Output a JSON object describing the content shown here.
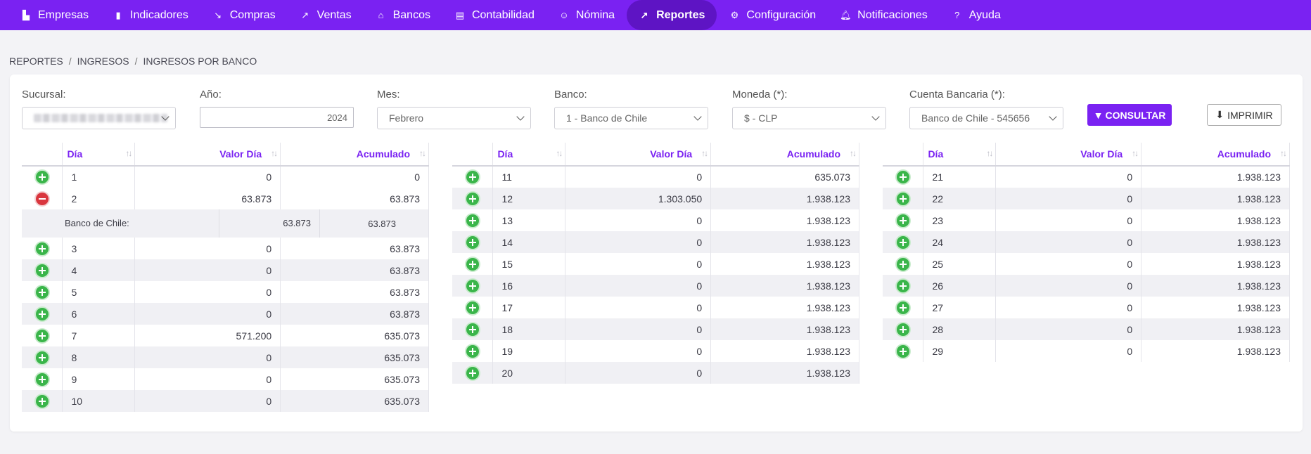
{
  "nav": [
    {
      "label": "Empresas",
      "icon": "building-icon"
    },
    {
      "label": "Indicadores",
      "icon": "bar-chart-icon"
    },
    {
      "label": "Compras",
      "icon": "arrow-down-right-icon"
    },
    {
      "label": "Ventas",
      "icon": "arrow-up-right-icon"
    },
    {
      "label": "Bancos",
      "icon": "bank-icon"
    },
    {
      "label": "Contabilidad",
      "icon": "calculator-icon"
    },
    {
      "label": "Nómina",
      "icon": "users-icon"
    },
    {
      "label": "Reportes",
      "icon": "line-chart-icon"
    },
    {
      "label": "Configuración",
      "icon": "gear-icon"
    },
    {
      "label": "Notificaciones",
      "icon": "bell-icon"
    },
    {
      "label": "Ayuda",
      "icon": "help-circle-icon"
    }
  ],
  "breadcrumb": [
    "REPORTES",
    "INGRESOS",
    "INGRESOS POR BANCO"
  ],
  "filters": {
    "sucursal_label": "Sucursal:",
    "anio_label": "Año:",
    "anio_value": "2024",
    "mes_label": "Mes:",
    "mes_value": "Febrero",
    "banco_label": "Banco:",
    "banco_value": "1 - Banco de Chile",
    "moneda_label": "Moneda (*):",
    "moneda_value": "$ - CLP",
    "cuenta_label": "Cuenta Bancaria (*):",
    "cuenta_value": "Banco de Chile - 545656"
  },
  "buttons": {
    "consultar": "CONSULTAR",
    "imprimir": "IMPRIMIR"
  },
  "columns": {
    "dia": "Día",
    "valor": "Valor Día",
    "acumulado": "Acumulado"
  },
  "table1": [
    {
      "dia": "1",
      "valor": "0",
      "acum": "0",
      "icon": "plus"
    },
    {
      "dia": "2",
      "valor": "63.873",
      "acum": "63.873",
      "icon": "minus"
    },
    {
      "dia": "3",
      "valor": "0",
      "acum": "63.873",
      "icon": "plus"
    },
    {
      "dia": "4",
      "valor": "0",
      "acum": "63.873",
      "icon": "plus"
    },
    {
      "dia": "5",
      "valor": "0",
      "acum": "63.873",
      "icon": "plus"
    },
    {
      "dia": "6",
      "valor": "0",
      "acum": "63.873",
      "icon": "plus"
    },
    {
      "dia": "7",
      "valor": "571.200",
      "acum": "635.073",
      "icon": "plus"
    },
    {
      "dia": "8",
      "valor": "0",
      "acum": "635.073",
      "icon": "plus"
    },
    {
      "dia": "9",
      "valor": "0",
      "acum": "635.073",
      "icon": "plus"
    },
    {
      "dia": "10",
      "valor": "0",
      "acum": "635.073",
      "icon": "plus"
    }
  ],
  "detail": {
    "label": "Banco de Chile:",
    "valor": "63.873",
    "acum": "63.873"
  },
  "table2": [
    {
      "dia": "11",
      "valor": "0",
      "acum": "635.073"
    },
    {
      "dia": "12",
      "valor": "1.303.050",
      "acum": "1.938.123"
    },
    {
      "dia": "13",
      "valor": "0",
      "acum": "1.938.123"
    },
    {
      "dia": "14",
      "valor": "0",
      "acum": "1.938.123"
    },
    {
      "dia": "15",
      "valor": "0",
      "acum": "1.938.123"
    },
    {
      "dia": "16",
      "valor": "0",
      "acum": "1.938.123"
    },
    {
      "dia": "17",
      "valor": "0",
      "acum": "1.938.123"
    },
    {
      "dia": "18",
      "valor": "0",
      "acum": "1.938.123"
    },
    {
      "dia": "19",
      "valor": "0",
      "acum": "1.938.123"
    },
    {
      "dia": "20",
      "valor": "0",
      "acum": "1.938.123"
    }
  ],
  "table3": [
    {
      "dia": "21",
      "valor": "0",
      "acum": "1.938.123"
    },
    {
      "dia": "22",
      "valor": "0",
      "acum": "1.938.123"
    },
    {
      "dia": "23",
      "valor": "0",
      "acum": "1.938.123"
    },
    {
      "dia": "24",
      "valor": "0",
      "acum": "1.938.123"
    },
    {
      "dia": "25",
      "valor": "0",
      "acum": "1.938.123"
    },
    {
      "dia": "26",
      "valor": "0",
      "acum": "1.938.123"
    },
    {
      "dia": "27",
      "valor": "0",
      "acum": "1.938.123"
    },
    {
      "dia": "28",
      "valor": "0",
      "acum": "1.938.123"
    },
    {
      "dia": "29",
      "valor": "0",
      "acum": "1.938.123"
    }
  ]
}
